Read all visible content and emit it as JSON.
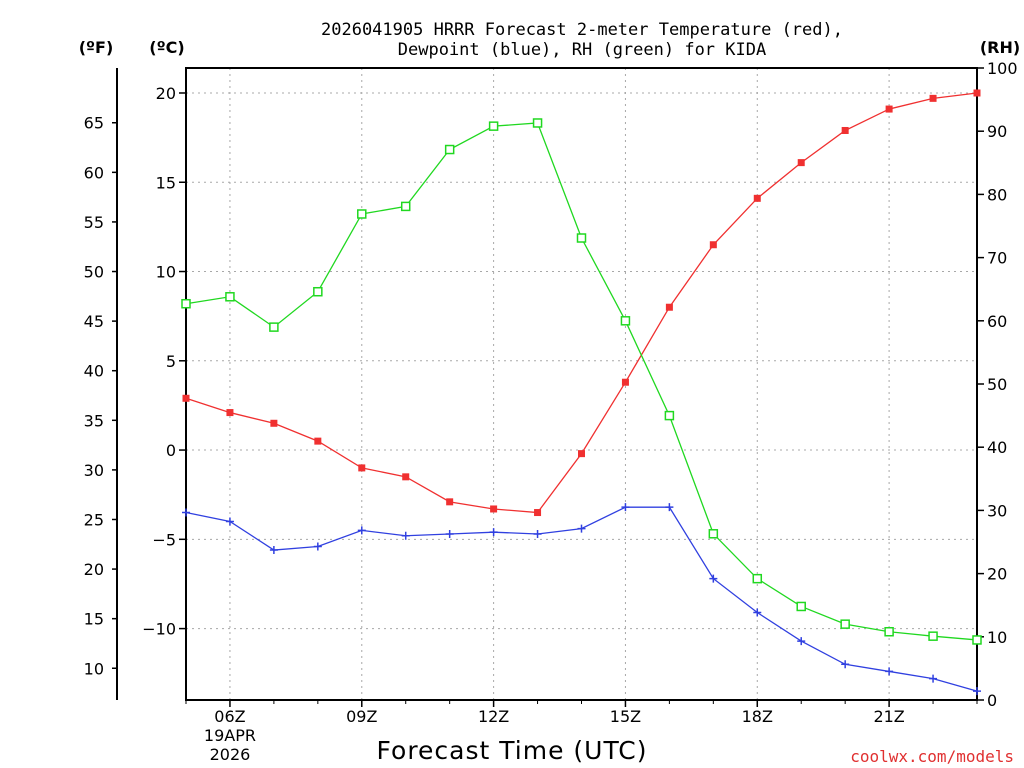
{
  "chart_data": {
    "type": "line",
    "title": [
      "2026041905 HRRR Forecast 2-meter Temperature (red),",
      "Dewpoint (blue), RH (green) for KIDA"
    ],
    "xlabel": "Forecast Time (UTC)",
    "x": [
      5,
      6,
      7,
      8,
      9,
      10,
      11,
      12,
      13,
      14,
      15,
      16,
      17,
      18,
      19,
      20,
      21,
      22,
      23
    ],
    "xlim": [
      5,
      23
    ],
    "x_ticks": [
      {
        "x": 6,
        "label": "06Z",
        "sub": [
          "19APR",
          "2026"
        ]
      },
      {
        "x": 9,
        "label": "09Z"
      },
      {
        "x": 12,
        "label": "12Z"
      },
      {
        "x": 15,
        "label": "15Z"
      },
      {
        "x": 18,
        "label": "18Z"
      },
      {
        "x": 21,
        "label": "21Z"
      }
    ],
    "celsius_axis": {
      "unit": "(ºC)",
      "ylim": [
        -14,
        21.4
      ],
      "ticks": [
        -10,
        -5,
        0,
        5,
        10,
        15,
        20
      ],
      "tick_labels": [
        "−10",
        "−5",
        "0",
        "5",
        "10",
        "15",
        "20"
      ]
    },
    "fahrenheit_axis": {
      "unit": "(ºF)",
      "ticks": [
        10,
        15,
        20,
        25,
        30,
        35,
        40,
        45,
        50,
        55,
        60,
        65
      ]
    },
    "rh_axis": {
      "unit": "(RH)",
      "ylim": [
        0,
        100
      ],
      "ticks": [
        0,
        10,
        20,
        30,
        40,
        50,
        60,
        70,
        80,
        90,
        100
      ]
    },
    "grid": true,
    "series": [
      {
        "name": "Temperature",
        "axis": "celsius",
        "color": "#f03030",
        "marker": "filled-square",
        "values": [
          2.9,
          2.1,
          1.5,
          0.5,
          -1.0,
          -1.5,
          -2.9,
          -3.3,
          -3.5,
          -0.2,
          3.8,
          8.0,
          11.5,
          14.1,
          16.1,
          17.9,
          19.1,
          19.7,
          20.0
        ]
      },
      {
        "name": "Dewpoint",
        "axis": "celsius",
        "color": "#3040e0",
        "marker": "plus",
        "values": [
          -3.5,
          -4.0,
          -5.6,
          -5.4,
          -4.5,
          -4.8,
          -4.7,
          -4.6,
          -4.7,
          -4.4,
          -3.2,
          -3.2,
          -7.2,
          -9.1,
          -10.7,
          -12.0,
          -12.4,
          -12.8,
          -13.5
        ]
      },
      {
        "name": "RH",
        "axis": "rh",
        "color": "#20d820",
        "marker": "open-square",
        "values": [
          62.7,
          63.8,
          59.0,
          64.6,
          76.9,
          78.1,
          87.1,
          90.8,
          91.3,
          73.1,
          60.0,
          45.0,
          26.3,
          19.2,
          14.8,
          12.0,
          10.8,
          10.1,
          9.5
        ]
      }
    ]
  },
  "footer": {
    "credit": "coolwx.com/models"
  }
}
